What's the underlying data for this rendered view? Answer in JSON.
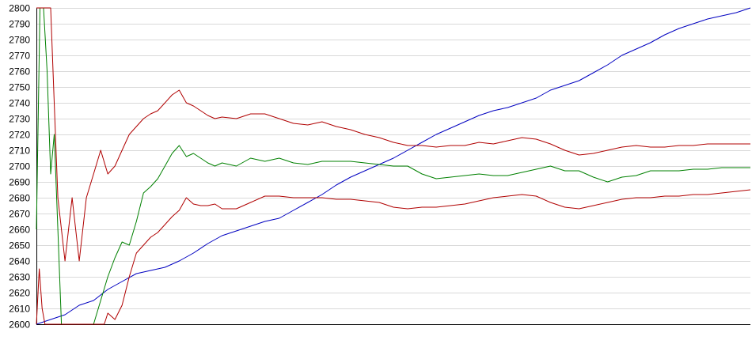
{
  "chart_data": {
    "type": "line",
    "title": "",
    "xlabel": "",
    "ylabel": "",
    "ylim": [
      2600,
      2800
    ],
    "xlim": [
      0,
      100
    ],
    "yticks": [
      2600,
      2610,
      2620,
      2630,
      2640,
      2650,
      2660,
      2670,
      2680,
      2690,
      2700,
      2710,
      2720,
      2730,
      2740,
      2750,
      2760,
      2770,
      2780,
      2790,
      2800
    ],
    "grid": true,
    "legend": "none",
    "series": [
      {
        "color": "#0000c0",
        "x": [
          0,
          2,
          4,
          6,
          8,
          10,
          12,
          14,
          16,
          18,
          20,
          22,
          24,
          26,
          28,
          30,
          32,
          34,
          36,
          38,
          40,
          42,
          44,
          46,
          48,
          50,
          52,
          54,
          56,
          58,
          60,
          62,
          64,
          66,
          68,
          70,
          72,
          74,
          76,
          78,
          80,
          82,
          84,
          86,
          88,
          90,
          92,
          94,
          96,
          98,
          100
        ],
        "y": [
          2600,
          2603,
          2606,
          2612,
          2615,
          2622,
          2627,
          2632,
          2634,
          2636,
          2640,
          2645,
          2651,
          2656,
          2659,
          2662,
          2665,
          2667,
          2672,
          2677,
          2682,
          2688,
          2693,
          2697,
          2701,
          2705,
          2710,
          2715,
          2720,
          2724,
          2728,
          2732,
          2735,
          2737,
          2740,
          2743,
          2748,
          2751,
          2754,
          2759,
          2764,
          2770,
          2774,
          2778,
          2783,
          2787,
          2790,
          2793,
          2795,
          2797,
          2800
        ]
      },
      {
        "color": "#008000",
        "x": [
          0,
          0.5,
          1,
          1.5,
          2,
          2.5,
          3,
          3.5,
          4,
          4.5,
          5,
          6,
          7,
          8,
          9,
          10,
          11,
          12,
          13,
          14,
          15,
          16,
          17,
          18,
          19,
          20,
          21,
          22,
          23,
          24,
          25,
          26,
          28,
          30,
          32,
          34,
          36,
          38,
          40,
          42,
          44,
          46,
          48,
          50,
          52,
          54,
          56,
          58,
          60,
          62,
          64,
          66,
          68,
          70,
          72,
          74,
          76,
          78,
          80,
          82,
          84,
          86,
          88,
          90,
          92,
          94,
          96,
          98,
          100
        ],
        "y": [
          2660,
          2800,
          2800,
          2760,
          2695,
          2720,
          2660,
          2600,
          2600,
          2600,
          2600,
          2600,
          2600,
          2600,
          2615,
          2630,
          2642,
          2652,
          2650,
          2665,
          2683,
          2687,
          2692,
          2700,
          2708,
          2713,
          2706,
          2708,
          2705,
          2702,
          2700,
          2702,
          2700,
          2705,
          2703,
          2705,
          2702,
          2701,
          2703,
          2703,
          2703,
          2702,
          2701,
          2700,
          2700,
          2695,
          2692,
          2693,
          2694,
          2695,
          2694,
          2694,
          2696,
          2698,
          2700,
          2697,
          2697,
          2693,
          2690,
          2693,
          2694,
          2697,
          2697,
          2697,
          2698,
          2698,
          2699,
          2699,
          2699
        ]
      },
      {
        "color": "#b00000",
        "x": [
          0,
          0.5,
          1,
          1.5,
          2,
          2.5,
          3,
          4,
          5,
          6,
          7,
          8,
          9,
          10,
          11,
          12,
          13,
          14,
          15,
          16,
          17,
          18,
          19,
          20,
          21,
          22,
          23,
          24,
          25,
          26,
          28,
          30,
          32,
          34,
          36,
          38,
          40,
          42,
          44,
          46,
          48,
          50,
          52,
          54,
          56,
          58,
          60,
          62,
          64,
          66,
          68,
          70,
          72,
          74,
          76,
          78,
          80,
          82,
          84,
          86,
          88,
          90,
          92,
          94,
          96,
          98,
          100
        ],
        "y": [
          2800,
          2800,
          2800,
          2800,
          2800,
          2740,
          2680,
          2640,
          2680,
          2640,
          2680,
          2695,
          2710,
          2695,
          2700,
          2710,
          2720,
          2725,
          2730,
          2733,
          2735,
          2740,
          2745,
          2748,
          2740,
          2738,
          2735,
          2732,
          2730,
          2731,
          2730,
          2733,
          2733,
          2730,
          2727,
          2726,
          2728,
          2725,
          2723,
          2720,
          2718,
          2715,
          2713,
          2713,
          2712,
          2713,
          2713,
          2715,
          2714,
          2716,
          2718,
          2717,
          2714,
          2710,
          2707,
          2708,
          2710,
          2712,
          2713,
          2712,
          2712,
          2713,
          2713,
          2714,
          2714,
          2714,
          2714
        ]
      },
      {
        "color": "#b00000",
        "x": [
          0,
          0.4,
          0.8,
          1.2,
          2,
          4,
          6,
          8,
          9.5,
          10,
          11,
          12,
          13,
          14,
          15,
          16,
          17,
          18,
          19,
          20,
          21,
          22,
          23,
          24,
          25,
          26,
          28,
          30,
          32,
          34,
          36,
          38,
          40,
          42,
          44,
          46,
          48,
          50,
          52,
          54,
          56,
          58,
          60,
          62,
          64,
          66,
          68,
          70,
          72,
          74,
          76,
          78,
          80,
          82,
          84,
          86,
          88,
          90,
          92,
          94,
          96,
          98,
          100
        ],
        "y": [
          2600,
          2635,
          2610,
          2600,
          2600,
          2600,
          2600,
          2600,
          2600,
          2607,
          2603,
          2612,
          2630,
          2645,
          2650,
          2655,
          2658,
          2663,
          2668,
          2672,
          2680,
          2676,
          2675,
          2675,
          2676,
          2673,
          2673,
          2677,
          2681,
          2681,
          2680,
          2680,
          2680,
          2679,
          2679,
          2678,
          2677,
          2674,
          2673,
          2674,
          2674,
          2675,
          2676,
          2678,
          2680,
          2681,
          2682,
          2681,
          2677,
          2674,
          2673,
          2675,
          2677,
          2679,
          2680,
          2680,
          2681,
          2681,
          2682,
          2682,
          2683,
          2684,
          2685
        ]
      }
    ]
  }
}
